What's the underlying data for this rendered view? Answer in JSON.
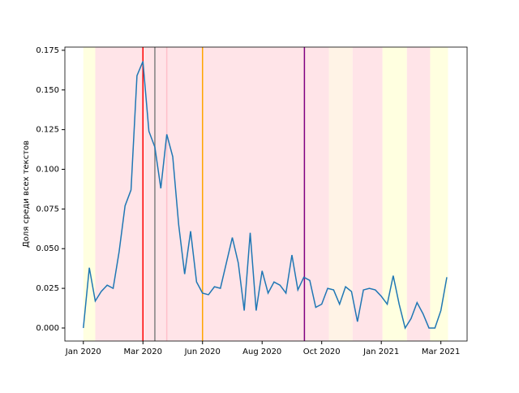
{
  "chart_data": {
    "type": "line",
    "y_label": "Доля среди всех текстов",
    "x": [
      0,
      1,
      2,
      3,
      4,
      5,
      6,
      7,
      8,
      9,
      10,
      11,
      12,
      13,
      14,
      15,
      16,
      17,
      18,
      19,
      20,
      21,
      22,
      23,
      24,
      25,
      26,
      27,
      28,
      29,
      30,
      31,
      32,
      33,
      34,
      35,
      36,
      37,
      38,
      39,
      40,
      41,
      42,
      43,
      44,
      45,
      46,
      47,
      48,
      49,
      50,
      51,
      52,
      53,
      54,
      55,
      56,
      57,
      58,
      59,
      60,
      61
    ],
    "series": [
      {
        "color": "#1f77b4",
        "values": [
          0.0,
          0.038,
          0.017,
          0.023,
          0.027,
          0.025,
          0.048,
          0.077,
          0.087,
          0.159,
          0.168,
          0.124,
          0.114,
          0.088,
          0.122,
          0.108,
          0.065,
          0.034,
          0.061,
          0.029,
          0.022,
          0.021,
          0.026,
          0.025,
          0.041,
          0.057,
          0.041,
          0.011,
          0.06,
          0.011,
          0.036,
          0.022,
          0.029,
          0.027,
          0.022,
          0.046,
          0.024,
          0.032,
          0.03,
          0.013,
          0.015,
          0.025,
          0.024,
          0.015,
          0.026,
          0.023,
          0.004,
          0.024,
          0.025,
          0.024,
          0.02,
          0.015,
          0.033,
          0.015,
          0.0,
          0.006,
          0.016,
          0.009,
          0.0,
          0.0,
          0.011,
          0.032
        ]
      }
    ],
    "xlim": [
      -3.1,
      64.4
    ],
    "ylim": [
      -0.0082,
      0.177
    ],
    "xticks": [
      {
        "value": 0,
        "label": "Jan 2020"
      },
      {
        "value": 10,
        "label": "Mar 2020"
      },
      {
        "value": 20,
        "label": "Jun 2020"
      },
      {
        "value": 30,
        "label": "Aug 2020"
      },
      {
        "value": 40,
        "label": "Oct 2020"
      },
      {
        "value": 50,
        "label": "Jan 2021"
      },
      {
        "value": 60,
        "label": "Mar 2021"
      }
    ],
    "yticks": [
      {
        "value": 0,
        "label": "0.000"
      },
      {
        "value": 0.025,
        "label": "0.025"
      },
      {
        "value": 0.05,
        "label": "0.050"
      },
      {
        "value": 0.075,
        "label": "0.075"
      },
      {
        "value": 0.1,
        "label": "0.100"
      },
      {
        "value": 0.125,
        "label": "0.125"
      },
      {
        "value": 0.15,
        "label": "0.150"
      },
      {
        "value": 0.175,
        "label": "0.175"
      }
    ],
    "spans": [
      {
        "start": 0,
        "end": 2,
        "color": "#ffffe0"
      },
      {
        "start": 2,
        "end": 41.2,
        "color": "#ffe4e8"
      },
      {
        "start": 41.2,
        "end": 45.2,
        "color": "#fff3e6"
      },
      {
        "start": 45.2,
        "end": 50.2,
        "color": "#ffe4e8"
      },
      {
        "start": 50.2,
        "end": 54.3,
        "color": "#ffffe0"
      },
      {
        "start": 54.3,
        "end": 58.2,
        "color": "#ffe4e8"
      },
      {
        "start": 58.2,
        "end": 61.2,
        "color": "#ffffe0"
      }
    ],
    "vlines": [
      {
        "x": 10,
        "color": "#ff0000"
      },
      {
        "x": 12,
        "color": "#808080"
      },
      {
        "x": 14,
        "color": "#ffc0cb"
      },
      {
        "x": 20,
        "color": "#ffa500"
      },
      {
        "x": 37.1,
        "color": "#800080"
      }
    ]
  }
}
